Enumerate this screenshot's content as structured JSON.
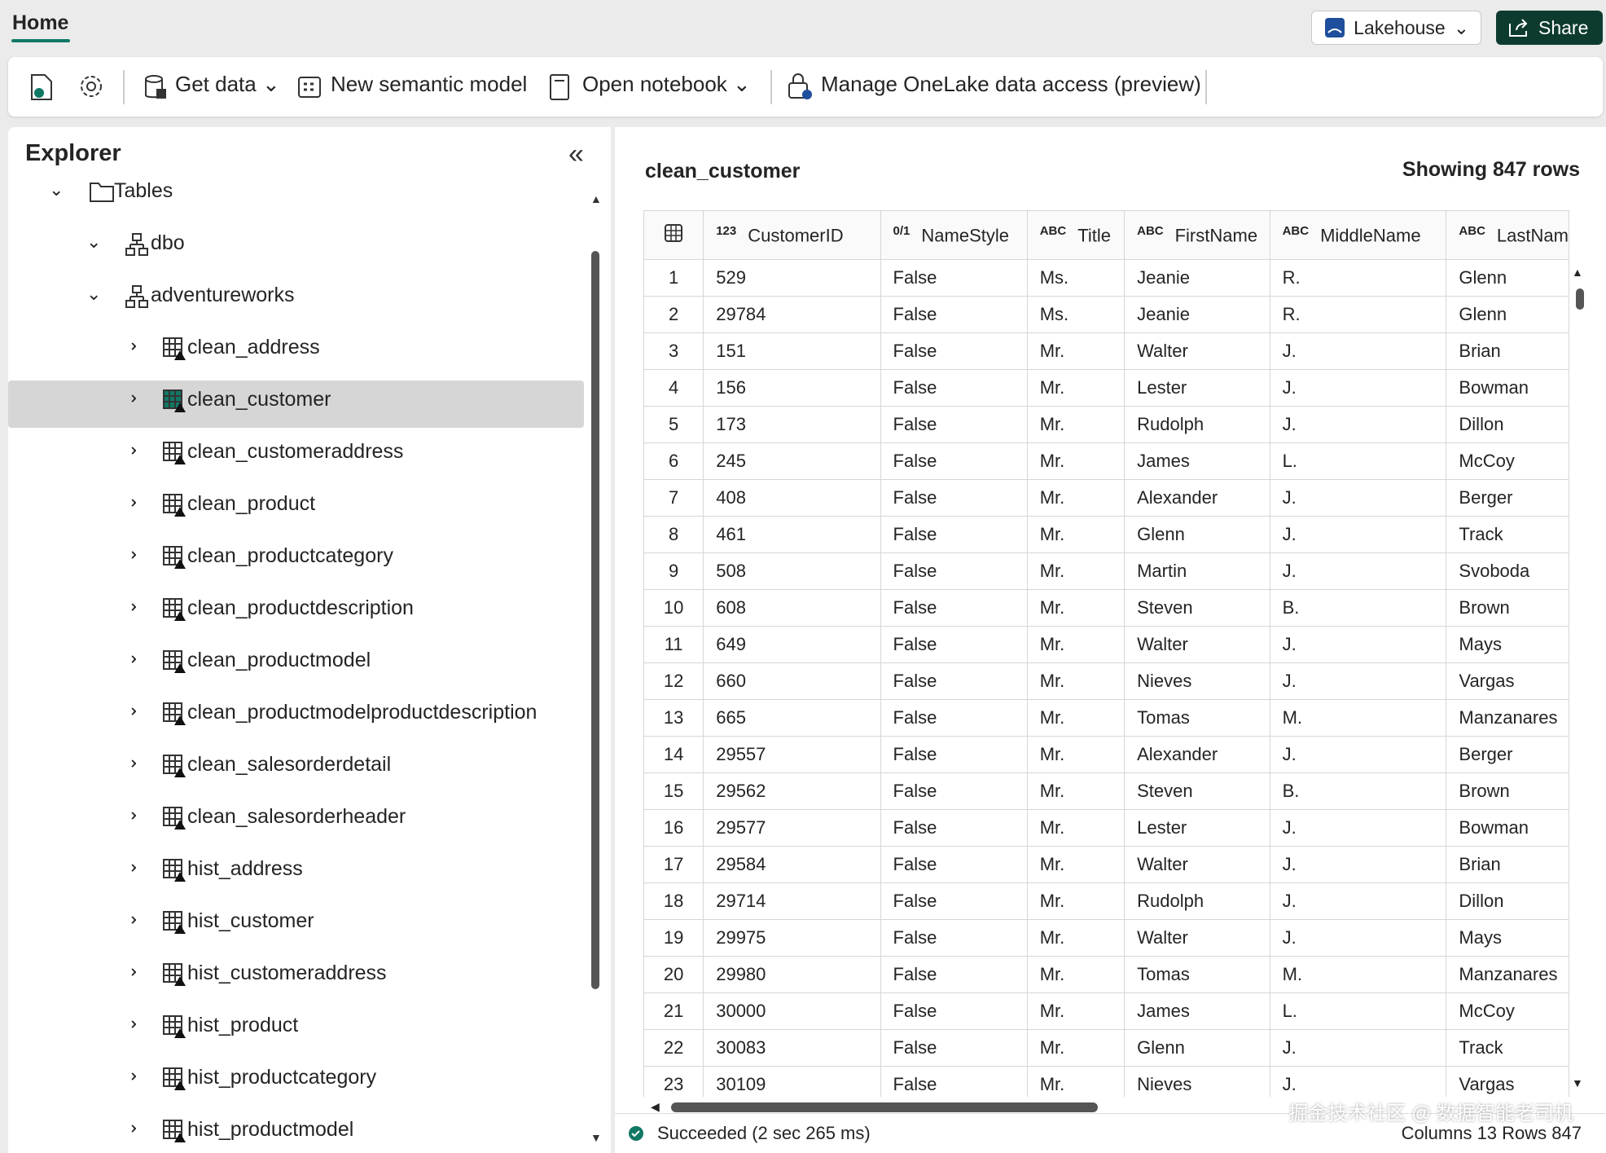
{
  "header": {
    "tab": "Home",
    "lakehouse_button": "Lakehouse",
    "share_button": "Share"
  },
  "toolbar": {
    "get_data": "Get data",
    "new_semantic_model": "New semantic model",
    "open_notebook": "Open notebook",
    "manage_access": "Manage OneLake data access (preview)"
  },
  "explorer": {
    "title": "Explorer",
    "items": [
      {
        "label": "Tables",
        "level": 0,
        "expanded": true,
        "kind": "folder"
      },
      {
        "label": "dbo",
        "level": 1,
        "expanded": true,
        "kind": "schema"
      },
      {
        "label": "adventureworks",
        "level": 1,
        "expanded": true,
        "kind": "schema"
      },
      {
        "label": "clean_address",
        "level": 2,
        "expanded": false,
        "kind": "table"
      },
      {
        "label": "clean_customer",
        "level": 2,
        "expanded": false,
        "kind": "table",
        "selected": true
      },
      {
        "label": "clean_customeraddress",
        "level": 2,
        "expanded": false,
        "kind": "table"
      },
      {
        "label": "clean_product",
        "level": 2,
        "expanded": false,
        "kind": "table"
      },
      {
        "label": "clean_productcategory",
        "level": 2,
        "expanded": false,
        "kind": "table"
      },
      {
        "label": "clean_productdescription",
        "level": 2,
        "expanded": false,
        "kind": "table"
      },
      {
        "label": "clean_productmodel",
        "level": 2,
        "expanded": false,
        "kind": "table"
      },
      {
        "label": "clean_productmodelproductdescription",
        "level": 2,
        "expanded": false,
        "kind": "table"
      },
      {
        "label": "clean_salesorderdetail",
        "level": 2,
        "expanded": false,
        "kind": "table"
      },
      {
        "label": "clean_salesorderheader",
        "level": 2,
        "expanded": false,
        "kind": "table"
      },
      {
        "label": "hist_address",
        "level": 2,
        "expanded": false,
        "kind": "table"
      },
      {
        "label": "hist_customer",
        "level": 2,
        "expanded": false,
        "kind": "table"
      },
      {
        "label": "hist_customeraddress",
        "level": 2,
        "expanded": false,
        "kind": "table"
      },
      {
        "label": "hist_product",
        "level": 2,
        "expanded": false,
        "kind": "table"
      },
      {
        "label": "hist_productcategory",
        "level": 2,
        "expanded": false,
        "kind": "table"
      },
      {
        "label": "hist_productmodel",
        "level": 2,
        "expanded": false,
        "kind": "table"
      }
    ]
  },
  "preview": {
    "table_name": "clean_customer",
    "row_count_label": "Showing 847 rows",
    "columns": [
      {
        "type": "123",
        "name": "CustomerID"
      },
      {
        "type": "0/1",
        "name": "NameStyle"
      },
      {
        "type": "ABC",
        "name": "Title"
      },
      {
        "type": "ABC",
        "name": "FirstName"
      },
      {
        "type": "ABC",
        "name": "MiddleName"
      },
      {
        "type": "ABC",
        "name": "LastNam"
      }
    ],
    "rows": [
      [
        1,
        529,
        "False",
        "Ms.",
        "Jeanie",
        "R.",
        "Glenn"
      ],
      [
        2,
        29784,
        "False",
        "Ms.",
        "Jeanie",
        "R.",
        "Glenn"
      ],
      [
        3,
        151,
        "False",
        "Mr.",
        "Walter",
        "J.",
        "Brian"
      ],
      [
        4,
        156,
        "False",
        "Mr.",
        "Lester",
        "J.",
        "Bowman"
      ],
      [
        5,
        173,
        "False",
        "Mr.",
        "Rudolph",
        "J.",
        "Dillon"
      ],
      [
        6,
        245,
        "False",
        "Mr.",
        "James",
        "L.",
        "McCoy"
      ],
      [
        7,
        408,
        "False",
        "Mr.",
        "Alexander",
        "J.",
        "Berger"
      ],
      [
        8,
        461,
        "False",
        "Mr.",
        "Glenn",
        "J.",
        "Track"
      ],
      [
        9,
        508,
        "False",
        "Mr.",
        "Martin",
        "J.",
        "Svoboda"
      ],
      [
        10,
        608,
        "False",
        "Mr.",
        "Steven",
        "B.",
        "Brown"
      ],
      [
        11,
        649,
        "False",
        "Mr.",
        "Walter",
        "J.",
        "Mays"
      ],
      [
        12,
        660,
        "False",
        "Mr.",
        "Nieves",
        "J.",
        "Vargas"
      ],
      [
        13,
        665,
        "False",
        "Mr.",
        "Tomas",
        "M.",
        "Manzanares"
      ],
      [
        14,
        29557,
        "False",
        "Mr.",
        "Alexander",
        "J.",
        "Berger"
      ],
      [
        15,
        29562,
        "False",
        "Mr.",
        "Steven",
        "B.",
        "Brown"
      ],
      [
        16,
        29577,
        "False",
        "Mr.",
        "Lester",
        "J.",
        "Bowman"
      ],
      [
        17,
        29584,
        "False",
        "Mr.",
        "Walter",
        "J.",
        "Brian"
      ],
      [
        18,
        29714,
        "False",
        "Mr.",
        "Rudolph",
        "J.",
        "Dillon"
      ],
      [
        19,
        29975,
        "False",
        "Mr.",
        "Walter",
        "J.",
        "Mays"
      ],
      [
        20,
        29980,
        "False",
        "Mr.",
        "Tomas",
        "M.",
        "Manzanares"
      ],
      [
        21,
        30000,
        "False",
        "Mr.",
        "James",
        "L.",
        "McCoy"
      ],
      [
        22,
        30083,
        "False",
        "Mr.",
        "Glenn",
        "J.",
        "Track"
      ],
      [
        23,
        30109,
        "False",
        "Mr.",
        "Nieves",
        "J.",
        "Vargas"
      ]
    ],
    "status": "Succeeded (2 sec 265 ms)",
    "summary": "Columns 13 Rows 847"
  },
  "watermark": "掘金技术社区 @ 数据智能老司机"
}
